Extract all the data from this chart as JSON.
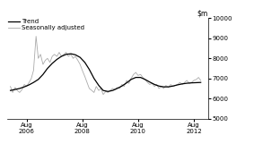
{
  "ylim": [
    5000,
    10000
  ],
  "yticks": [
    5000,
    6000,
    7000,
    8000,
    9000,
    10000
  ],
  "xtick_labels": [
    "Aug\n2006",
    "Aug\n2008",
    "Aug\n2010",
    "Aug\n2012"
  ],
  "xtick_positions": [
    2006.583,
    2008.583,
    2010.583,
    2012.583
  ],
  "xlim": [
    2005.9,
    2013.1
  ],
  "legend_entries": [
    "Trend",
    "Seasonally adjusted"
  ],
  "trend_color": "#000000",
  "seasonal_color": "#aaaaaa",
  "trend_linewidth": 0.9,
  "seasonal_linewidth": 0.6,
  "background_color": "#ffffff",
  "trend_data": [
    [
      2006.0,
      6400
    ],
    [
      2006.17,
      6450
    ],
    [
      2006.33,
      6500
    ],
    [
      2006.5,
      6580
    ],
    [
      2006.67,
      6680
    ],
    [
      2006.83,
      6800
    ],
    [
      2007.0,
      6950
    ],
    [
      2007.17,
      7200
    ],
    [
      2007.33,
      7500
    ],
    [
      2007.5,
      7750
    ],
    [
      2007.67,
      7950
    ],
    [
      2007.83,
      8100
    ],
    [
      2008.0,
      8200
    ],
    [
      2008.17,
      8230
    ],
    [
      2008.33,
      8180
    ],
    [
      2008.5,
      8050
    ],
    [
      2008.67,
      7800
    ],
    [
      2008.83,
      7450
    ],
    [
      2009.0,
      7000
    ],
    [
      2009.17,
      6650
    ],
    [
      2009.33,
      6400
    ],
    [
      2009.5,
      6350
    ],
    [
      2009.67,
      6400
    ],
    [
      2009.83,
      6500
    ],
    [
      2010.0,
      6620
    ],
    [
      2010.17,
      6780
    ],
    [
      2010.33,
      6950
    ],
    [
      2010.5,
      7050
    ],
    [
      2010.67,
      7050
    ],
    [
      2010.83,
      6950
    ],
    [
      2011.0,
      6820
    ],
    [
      2011.17,
      6700
    ],
    [
      2011.33,
      6620
    ],
    [
      2011.5,
      6580
    ],
    [
      2011.67,
      6580
    ],
    [
      2011.83,
      6620
    ],
    [
      2012.0,
      6680
    ],
    [
      2012.17,
      6730
    ],
    [
      2012.33,
      6760
    ],
    [
      2012.5,
      6780
    ],
    [
      2012.67,
      6790
    ],
    [
      2012.83,
      6800
    ]
  ],
  "seasonal_data": [
    [
      2006.0,
      6600
    ],
    [
      2006.08,
      6300
    ],
    [
      2006.17,
      6550
    ],
    [
      2006.25,
      6400
    ],
    [
      2006.33,
      6300
    ],
    [
      2006.42,
      6450
    ],
    [
      2006.5,
      6700
    ],
    [
      2006.58,
      6600
    ],
    [
      2006.67,
      6800
    ],
    [
      2006.75,
      7000
    ],
    [
      2006.83,
      7400
    ],
    [
      2006.92,
      9100
    ],
    [
      2007.0,
      8000
    ],
    [
      2007.08,
      8200
    ],
    [
      2007.17,
      7700
    ],
    [
      2007.25,
      7900
    ],
    [
      2007.33,
      8000
    ],
    [
      2007.42,
      7800
    ],
    [
      2007.5,
      8100
    ],
    [
      2007.58,
      8200
    ],
    [
      2007.67,
      8100
    ],
    [
      2007.75,
      8300
    ],
    [
      2007.83,
      8100
    ],
    [
      2007.92,
      8200
    ],
    [
      2008.0,
      8300
    ],
    [
      2008.08,
      8100
    ],
    [
      2008.17,
      8200
    ],
    [
      2008.25,
      8000
    ],
    [
      2008.33,
      8100
    ],
    [
      2008.42,
      7900
    ],
    [
      2008.5,
      7700
    ],
    [
      2008.58,
      7400
    ],
    [
      2008.67,
      7100
    ],
    [
      2008.75,
      6800
    ],
    [
      2008.83,
      6500
    ],
    [
      2008.92,
      6400
    ],
    [
      2009.0,
      6300
    ],
    [
      2009.08,
      6600
    ],
    [
      2009.17,
      6400
    ],
    [
      2009.25,
      6500
    ],
    [
      2009.33,
      6200
    ],
    [
      2009.42,
      6350
    ],
    [
      2009.5,
      6300
    ],
    [
      2009.58,
      6400
    ],
    [
      2009.67,
      6500
    ],
    [
      2009.75,
      6450
    ],
    [
      2009.83,
      6550
    ],
    [
      2009.92,
      6500
    ],
    [
      2010.0,
      6700
    ],
    [
      2010.08,
      6600
    ],
    [
      2010.17,
      6900
    ],
    [
      2010.25,
      6750
    ],
    [
      2010.33,
      7000
    ],
    [
      2010.42,
      7200
    ],
    [
      2010.5,
      7300
    ],
    [
      2010.58,
      7150
    ],
    [
      2010.67,
      7200
    ],
    [
      2010.75,
      7050
    ],
    [
      2010.83,
      6950
    ],
    [
      2010.92,
      6800
    ],
    [
      2011.0,
      6700
    ],
    [
      2011.08,
      6750
    ],
    [
      2011.17,
      6600
    ],
    [
      2011.25,
      6700
    ],
    [
      2011.33,
      6500
    ],
    [
      2011.42,
      6600
    ],
    [
      2011.5,
      6500
    ],
    [
      2011.58,
      6650
    ],
    [
      2011.67,
      6550
    ],
    [
      2011.75,
      6700
    ],
    [
      2011.83,
      6600
    ],
    [
      2011.92,
      6650
    ],
    [
      2012.0,
      6700
    ],
    [
      2012.08,
      6800
    ],
    [
      2012.17,
      6700
    ],
    [
      2012.25,
      6800
    ],
    [
      2012.33,
      6900
    ],
    [
      2012.42,
      6750
    ],
    [
      2012.5,
      6800
    ],
    [
      2012.58,
      6900
    ],
    [
      2012.67,
      6950
    ],
    [
      2012.75,
      7050
    ],
    [
      2012.83,
      6900
    ]
  ]
}
